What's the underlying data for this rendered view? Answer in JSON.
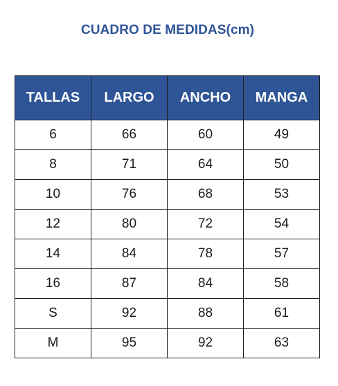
{
  "title": "CUADRO DE MEDIDAS(cm)",
  "colors": {
    "title": "#2f5597",
    "header_bg": "#2f5597",
    "header_text": "#ffffff",
    "border": "#1f1f1f"
  },
  "table": {
    "headers": [
      "TALLAS",
      "LARGO",
      "ANCHO",
      "MANGA"
    ],
    "rows": [
      [
        "6",
        "66",
        "60",
        "49"
      ],
      [
        "8",
        "71",
        "64",
        "50"
      ],
      [
        "10",
        "76",
        "68",
        "53"
      ],
      [
        "12",
        "80",
        "72",
        "54"
      ],
      [
        "14",
        "84",
        "78",
        "57"
      ],
      [
        "16",
        "87",
        "84",
        "58"
      ],
      [
        "S",
        "92",
        "88",
        "61"
      ],
      [
        "M",
        "95",
        "92",
        "63"
      ]
    ]
  }
}
